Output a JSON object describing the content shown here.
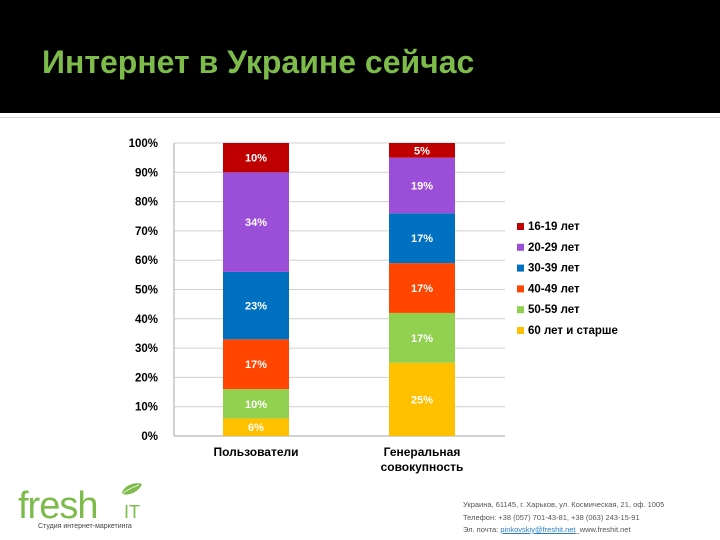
{
  "slide": {
    "title": "Интернет в Украине сейчас"
  },
  "brand": {
    "logo_text": "fresh",
    "logo_suffix": "IT",
    "tagline": "Студия интернет-маркетинга",
    "green": "#7dbb4a"
  },
  "contacts": {
    "address": "Украина, 61145, г. Харьков, ул. Космическая, 21, оф. 1005",
    "phone": "Телефон: +38 (057) 701-43-81, +38 (063) 243-15-91",
    "email_label": "Эл. почта: ",
    "email": "pinkovskiy@freshit.net",
    "site_sep": "_",
    "site": "www.freshit.net"
  },
  "chart_data": {
    "type": "bar",
    "stacked": true,
    "percent": true,
    "categories": [
      "Пользователи",
      "Генеральная совокупность"
    ],
    "category_lines": [
      [
        "Пользователи"
      ],
      [
        "Генеральная",
        "совокупность"
      ]
    ],
    "yticks": [
      "0%",
      "10%",
      "20%",
      "30%",
      "40%",
      "50%",
      "60%",
      "70%",
      "80%",
      "90%",
      "100%"
    ],
    "ylim": [
      0,
      100
    ],
    "grid": true,
    "legend_position": "right",
    "series": [
      {
        "name": "60 лет и старше",
        "color": "#ffc000",
        "values": [
          6,
          25
        ],
        "labels": [
          "6%",
          "25%"
        ]
      },
      {
        "name": "50-59 лет",
        "color": "#92d050",
        "values": [
          10,
          17
        ],
        "labels": [
          "10%",
          "17%"
        ]
      },
      {
        "name": "40-49 лет",
        "color": "#ff4500",
        "values": [
          17,
          17
        ],
        "labels": [
          "17%",
          "17%"
        ]
      },
      {
        "name": "30-39 лет",
        "color": "#0070c0",
        "values": [
          23,
          17
        ],
        "labels": [
          "23%",
          "17%"
        ]
      },
      {
        "name": "20-29 лет",
        "color": "#9b4fd8",
        "values": [
          34,
          19
        ],
        "labels": [
          "34%",
          "19%"
        ]
      },
      {
        "name": "16-19 лет",
        "color": "#c00000",
        "values": [
          10,
          5
        ],
        "labels": [
          "10%",
          "5%"
        ]
      }
    ]
  }
}
